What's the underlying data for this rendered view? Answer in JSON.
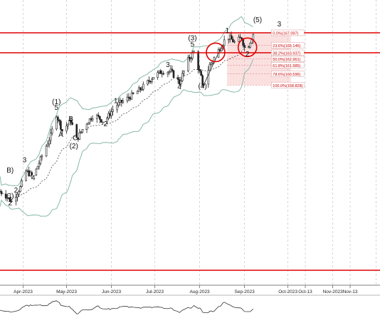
{
  "chart_data": {
    "type": "candlestick",
    "colors": {
      "candle": "#222222",
      "band": "#88b8a8",
      "ma": "#333333",
      "level_line": "#e00000",
      "circle": "#e00000",
      "fib_zone": "#f7c7c7",
      "fib_label": "#cc0000",
      "oscillator": "#333333"
    },
    "x_axis_labels": [
      "Apr-2023",
      "May-2023",
      "Jun-2023",
      "Jul-2023",
      "Aug-2023",
      "Sep-2023",
      "Oct-2023",
      "Oct-13",
      "Nov-2023",
      "Nov-13"
    ],
    "resistance_levels": [
      167.097,
      163.937
    ],
    "fibonacci_levels": [
      {
        "label": "0.0%(167.097)",
        "price": 167.097
      },
      {
        "label": "23.6%(165.146)",
        "price": 165.146
      },
      {
        "label": "38.2%(163.937)",
        "price": 163.937
      },
      {
        "label": "50.0%(162.961)",
        "price": 162.961
      },
      {
        "label": "61.8%(161.985)",
        "price": 161.985
      },
      {
        "label": "78.6%(160.596)",
        "price": 160.596
      },
      {
        "label": "100.0%(158.828)",
        "price": 158.828
      }
    ],
    "wave_labels": [
      {
        "text": "(5)",
        "date": "2023-09-10",
        "price": 168.8
      },
      {
        "text": "3",
        "date": "2023-09-25",
        "price": 168.1
      },
      {
        "text": "1",
        "date": "2023-08-20",
        "price": 167.1
      },
      {
        "text": "(3)",
        "date": "2023-07-27",
        "price": 165.9
      },
      {
        "text": "5",
        "date": "2023-07-27",
        "price": 164.9
      },
      {
        "text": "3",
        "date": "2023-07-10",
        "price": 161.7
      },
      {
        "text": "2",
        "date": "2023-09-03",
        "price": 163.4
      },
      {
        "text": "4",
        "date": "2023-07-18",
        "price": 158.2
      },
      {
        "text": "(4)",
        "date": "2023-08-03",
        "price": 158.3
      },
      {
        "text": "1",
        "date": "2023-06-04",
        "price": 156.0
      },
      {
        "text": "2",
        "date": "2023-05-28",
        "price": 152.3
      },
      {
        "text": "(1)",
        "date": "2023-04-24",
        "price": 155.8
      },
      {
        "text": "5",
        "date": "2023-04-24",
        "price": 154.9
      },
      {
        "text": "B",
        "date": "2023-05-04",
        "price": 153.1
      },
      {
        "text": "A",
        "date": "2023-04-27",
        "price": 150.6
      },
      {
        "text": "C",
        "date": "2023-05-07",
        "price": 150.1
      },
      {
        "text": "(2)",
        "date": "2023-05-06",
        "price": 148.8
      },
      {
        "text": "3",
        "date": "2023-04-02",
        "price": 146.6
      },
      {
        "text": "4",
        "date": "2023-04-08",
        "price": 143.8
      },
      {
        "text": "B)",
        "date": "2023-03-23",
        "price": 145.0
      },
      {
        "text": "2",
        "date": "2023-03-27",
        "price": 141.8
      },
      {
        "text": "C)",
        "date": "2023-03-23",
        "price": 140.9
      },
      {
        "text": "2",
        "date": "2023-03-23",
        "price": 139.8
      }
    ]
  }
}
